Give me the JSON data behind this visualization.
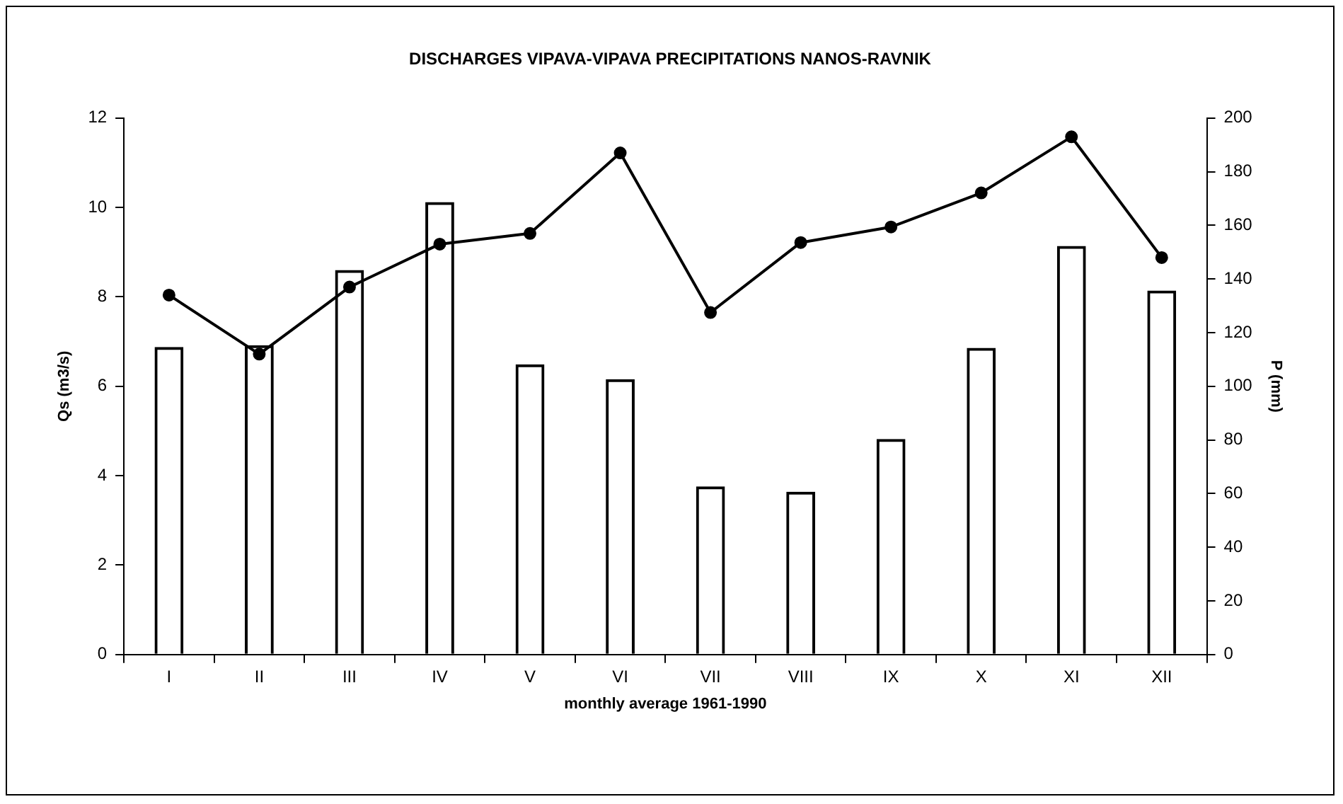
{
  "chart_data": {
    "type": "bar",
    "title": "DISCHARGES VIPAVA-VIPAVA PRECIPITATIONS NANOS-RAVNIK",
    "xlabel": "monthly average 1961-1990",
    "ylabel": "Qs (m3/s)",
    "y2label": "P (mm)",
    "categories": [
      "I",
      "II",
      "III",
      "IV",
      "V",
      "VI",
      "VII",
      "VIII",
      "IX",
      "X",
      "XI",
      "XII"
    ],
    "series": [
      {
        "color": "#000000",
        "values": [
          6.88,
          6.92,
          8.6,
          10.12,
          6.49,
          6.16,
          3.76,
          3.64,
          4.82,
          6.86,
          9.14,
          8.14
        ]
      },
      {
        "type": "line",
        "axis": "y2",
        "color": "#000000",
        "marker": "circle",
        "values": [
          134,
          112,
          137,
          153,
          157,
          187,
          127.5,
          153.6,
          159.4,
          172.1,
          193,
          148
        ]
      }
    ],
    "ylim": [
      0,
      12
    ],
    "yticks": [
      0,
      2,
      4,
      6,
      8,
      10,
      12
    ],
    "y2lim": [
      0,
      200
    ],
    "y2ticks": [
      0,
      20,
      40,
      60,
      80,
      100,
      120,
      140,
      160,
      180,
      200
    ],
    "grid": false,
    "legend": false
  }
}
